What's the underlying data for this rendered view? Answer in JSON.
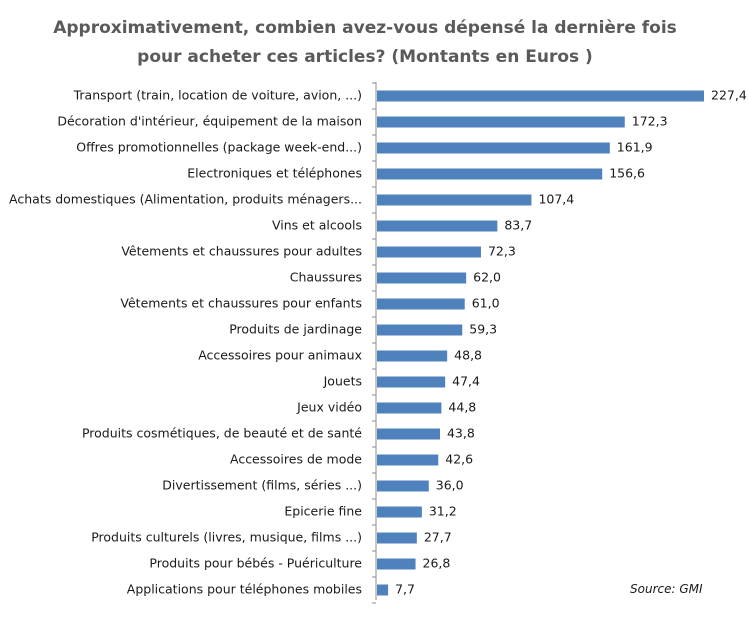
{
  "chart_data": {
    "type": "bar",
    "orientation": "horizontal",
    "title_lines": [
      "Approximativement, combien avez-vous dépensé la dernière fois",
      "pour acheter ces articles? (Montants en Euros )"
    ],
    "xlabel": "",
    "ylabel": "",
    "xlim": [
      0,
      227.4
    ],
    "grid": false,
    "categories": [
      "Transport (train, location de voiture, avion, ...)",
      "Décoration d'intérieur, équipement de la maison",
      "Offres promotionnelles (package week-end...)",
      "Electroniques et téléphones",
      "Achats domestiques (Alimentation, produits ménagers...",
      "Vins et alcools",
      "Vêtements et chaussures pour adultes",
      "Chaussures",
      "Vêtements et chaussures pour enfants",
      "Produits de jardinage",
      "Accessoires pour animaux",
      "Jouets",
      "Jeux vidéo",
      "Produits cosmétiques, de beauté et de santé",
      "Accessoires de mode",
      "Divertissement (films, séries ...)",
      "Epicerie fine",
      "Produits culturels (livres, musique, films ...)",
      "Produits pour bébés - Puériculture",
      "Applications pour téléphones mobiles"
    ],
    "values": [
      227.4,
      172.3,
      161.9,
      156.6,
      107.4,
      83.7,
      72.3,
      62.0,
      61.0,
      59.3,
      48.8,
      47.4,
      44.8,
      43.8,
      42.6,
      36.0,
      31.2,
      27.7,
      26.8,
      7.7
    ],
    "value_labels": [
      "227,4",
      "172,3",
      "161,9",
      "156,6",
      "107,4",
      "83,7",
      "72,3",
      "62,0",
      "61,0",
      "59,3",
      "48,8",
      "47,4",
      "44,8",
      "43,8",
      "42,6",
      "36,0",
      "31,2",
      "27,7",
      "26,8",
      "7,7"
    ],
    "series_color": "#4f81bd",
    "source": "Source: GMI"
  }
}
